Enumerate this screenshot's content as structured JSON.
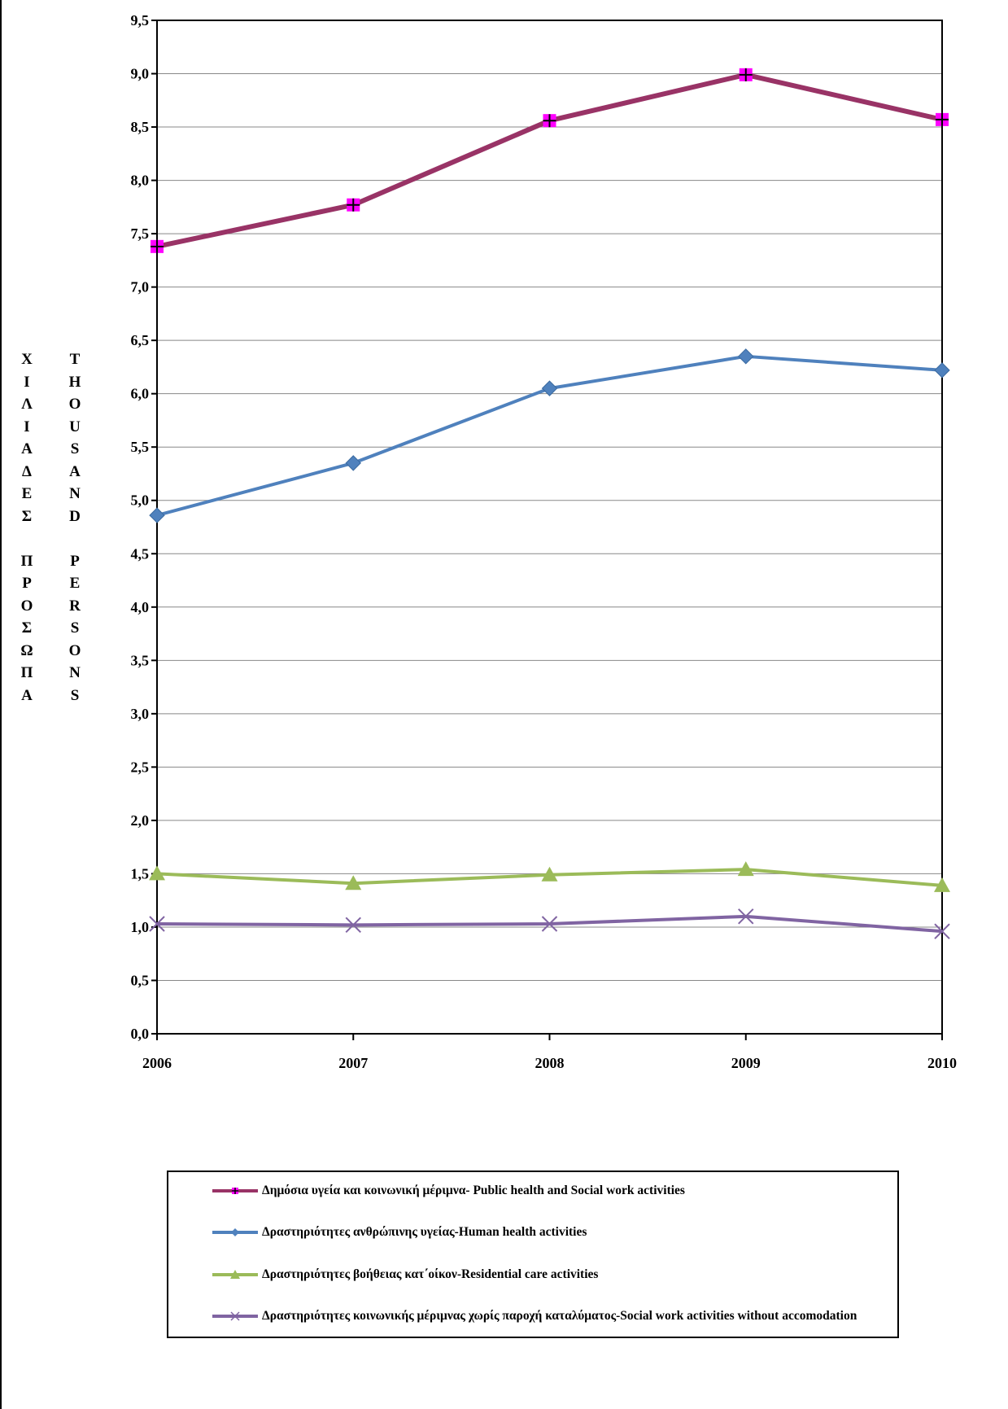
{
  "chart_data": {
    "type": "line",
    "title": "",
    "xlabel": "",
    "ylabel_greek": "ΧΙΛΙΑΔΕΣ ΠΡΟΣΩΠΑ",
    "ylabel_english": "THOUSAND PERSONS",
    "categories": [
      "2006",
      "2007",
      "2008",
      "2009",
      "2010"
    ],
    "ylim": [
      0,
      9.5
    ],
    "yticks": [
      "0,0",
      "0,5",
      "1,0",
      "1,5",
      "2,0",
      "2,5",
      "3,0",
      "3,5",
      "4,0",
      "4,5",
      "5,0",
      "5,5",
      "6,0",
      "6,5",
      "7,0",
      "7,5",
      "8,0",
      "8,5",
      "9,0",
      "9,5"
    ],
    "grid": true,
    "legend_position": "bottom",
    "series": [
      {
        "name": "Δημόσια υγεία και κοινωνική μέριμνα- Public health and Social work activities",
        "values": [
          7.38,
          7.77,
          8.56,
          8.99,
          8.57
        ],
        "color": "#993366",
        "marker": "square-plus",
        "marker_color": "#ff00ff"
      },
      {
        "name": "Δραστηριότητες ανθρώπινης υγείας-Human health activities",
        "values": [
          4.86,
          5.35,
          6.05,
          6.35,
          6.22
        ],
        "color": "#4f81bd",
        "marker": "diamond",
        "marker_color": "#4f81bd"
      },
      {
        "name": "Δραστηριότητες βοήθειας κατ΄οίκον-Residential care activities",
        "values": [
          1.5,
          1.41,
          1.49,
          1.54,
          1.39
        ],
        "color": "#9bbb59",
        "marker": "triangle",
        "marker_color": "#9bbb59"
      },
      {
        "name": "Δραστηριότητες κοινωνικής μέριμνας χωρίς παροχή καταλύματος-Social work activities without accomodation",
        "values": [
          1.03,
          1.02,
          1.03,
          1.1,
          0.96
        ],
        "color": "#8064a2",
        "marker": "x",
        "marker_color": "#8064a2"
      }
    ]
  }
}
